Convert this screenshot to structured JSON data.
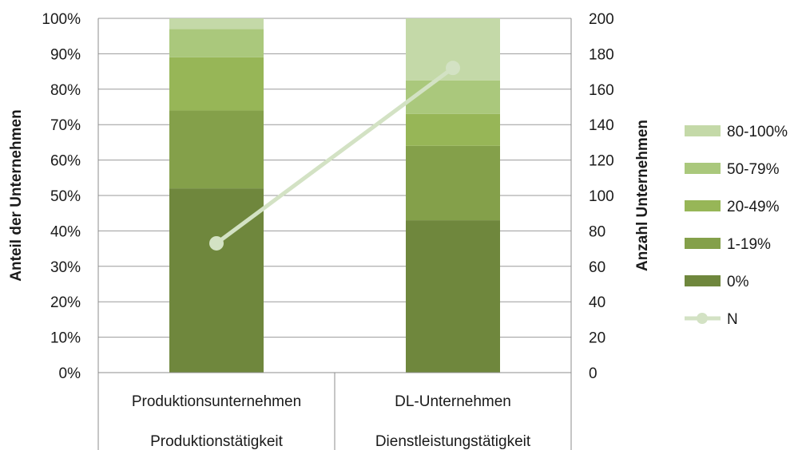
{
  "chart_data": {
    "type": "bar",
    "stacked": true,
    "categories": [
      [
        "Produktionsunternehmen",
        "Produktionstätigkeit"
      ],
      [
        "DL-Unternehmen",
        "Dienstleistungstätigkeit"
      ]
    ],
    "series": [
      {
        "name": "0%",
        "values": [
          52,
          43
        ],
        "color": "#6f873d"
      },
      {
        "name": "1-19%",
        "values": [
          22,
          21
        ],
        "color": "#84a04a"
      },
      {
        "name": "20-49%",
        "values": [
          15,
          9
        ],
        "color": "#97b657"
      },
      {
        "name": "50-79%",
        "values": [
          8,
          9.5
        ],
        "color": "#aac87c"
      },
      {
        "name": "80-100%",
        "values": [
          3,
          17.5
        ],
        "color": "#c4d9a8"
      }
    ],
    "line_series": {
      "name": "N",
      "values": [
        73,
        172
      ],
      "color": "#d3e2c4",
      "axis": "right"
    },
    "ylabel": "Anteil der Unternehmen",
    "ylabel_right": "Anzahl Unternehmen",
    "ylim": [
      0,
      100
    ],
    "ylim_right": [
      0,
      200
    ],
    "yticks": [
      "0%",
      "10%",
      "20%",
      "30%",
      "40%",
      "50%",
      "60%",
      "70%",
      "80%",
      "90%",
      "100%"
    ],
    "yticks_right": [
      "0",
      "20",
      "40",
      "60",
      "80",
      "100",
      "120",
      "140",
      "160",
      "180",
      "200"
    ],
    "grid": true,
    "legend": "right"
  }
}
